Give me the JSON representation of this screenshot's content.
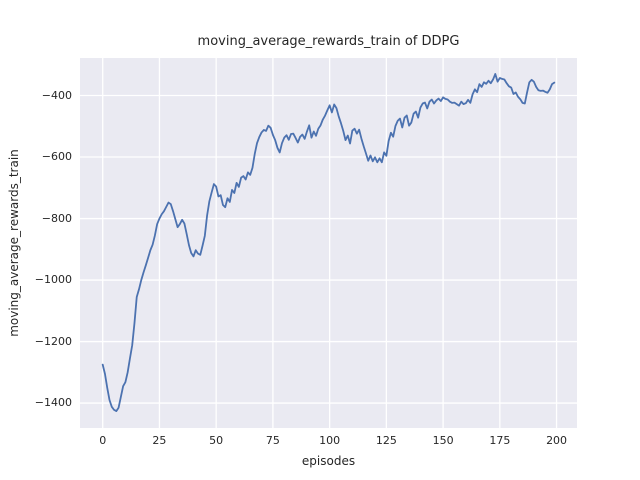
{
  "figure": {
    "background_color": "#ffffff",
    "axes_background_color": "#eaeaf2",
    "grid_color": "#ffffff",
    "text_color": "#262626",
    "accent_line_color": "#4c72b0"
  },
  "chart_data": {
    "type": "line",
    "title": "moving_average_rewards_train of DDPG",
    "xlabel": "episodes",
    "ylabel": "moving_average_rewards_train",
    "grid": true,
    "legend": false,
    "xlim": [
      -10,
      209
    ],
    "ylim": [
      -1481,
      -278
    ],
    "xticks": [
      0,
      25,
      50,
      75,
      100,
      125,
      150,
      175,
      200
    ],
    "xtick_labels": [
      "0",
      "25",
      "50",
      "75",
      "100",
      "125",
      "150",
      "175",
      "200"
    ],
    "yticks": [
      -400,
      -600,
      -800,
      -1000,
      -1200,
      -1400
    ],
    "ytick_labels": [
      "−400",
      "−600",
      "−800",
      "−1000",
      "−1200",
      "−1400"
    ],
    "series": [
      {
        "name": "moving_average_rewards_train",
        "color": "#4c72b0",
        "line_width": 1.8,
        "x": {
          "start": 0,
          "step": 1,
          "count": 200
        },
        "y": [
          -1275,
          -1305,
          -1350,
          -1390,
          -1412,
          -1422,
          -1426,
          -1415,
          -1380,
          -1345,
          -1332,
          -1300,
          -1255,
          -1212,
          -1140,
          -1055,
          -1030,
          -1000,
          -975,
          -952,
          -928,
          -903,
          -885,
          -855,
          -818,
          -800,
          -786,
          -776,
          -762,
          -748,
          -753,
          -776,
          -802,
          -828,
          -818,
          -804,
          -816,
          -850,
          -886,
          -912,
          -923,
          -903,
          -914,
          -918,
          -888,
          -856,
          -790,
          -744,
          -715,
          -688,
          -696,
          -728,
          -724,
          -756,
          -763,
          -734,
          -746,
          -707,
          -717,
          -684,
          -697,
          -667,
          -662,
          -673,
          -650,
          -658,
          -635,
          -590,
          -555,
          -535,
          -520,
          -512,
          -515,
          -498,
          -505,
          -528,
          -545,
          -570,
          -585,
          -555,
          -537,
          -529,
          -544,
          -525,
          -524,
          -538,
          -553,
          -534,
          -527,
          -541,
          -517,
          -497,
          -537,
          -517,
          -531,
          -508,
          -497,
          -478,
          -465,
          -448,
          -432,
          -455,
          -429,
          -441,
          -468,
          -490,
          -515,
          -545,
          -530,
          -556,
          -514,
          -508,
          -524,
          -511,
          -540,
          -565,
          -588,
          -612,
          -595,
          -614,
          -601,
          -617,
          -604,
          -617,
          -585,
          -596,
          -548,
          -521,
          -534,
          -499,
          -482,
          -475,
          -504,
          -472,
          -465,
          -498,
          -488,
          -459,
          -452,
          -472,
          -439,
          -426,
          -423,
          -442,
          -420,
          -413,
          -426,
          -416,
          -410,
          -418,
          -406,
          -411,
          -413,
          -420,
          -424,
          -423,
          -428,
          -433,
          -420,
          -428,
          -425,
          -414,
          -424,
          -396,
          -380,
          -389,
          -363,
          -372,
          -357,
          -362,
          -352,
          -360,
          -348,
          -330,
          -355,
          -343,
          -346,
          -348,
          -360,
          -370,
          -374,
          -395,
          -390,
          -404,
          -412,
          -424,
          -426,
          -390,
          -357,
          -349,
          -355,
          -372,
          -383,
          -385,
          -384,
          -388,
          -391,
          -380,
          -363,
          -358
        ]
      }
    ]
  }
}
